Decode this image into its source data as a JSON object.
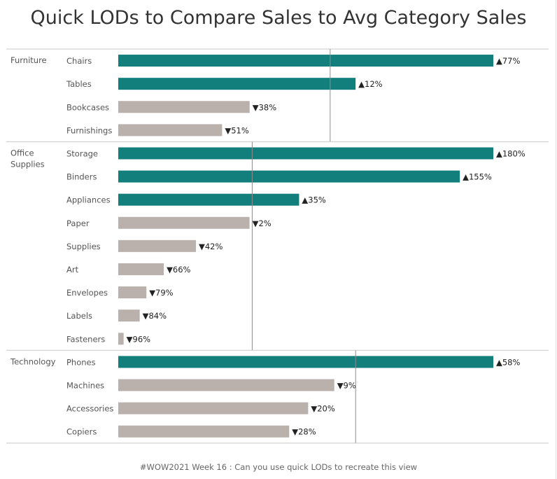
{
  "title": "Quick LODs to Compare Sales to Avg Category Sales",
  "footer": "#WOW2021 Week 16 : Can you use quick LODs to recreate this view",
  "colors": {
    "above": "#137f7d",
    "below": "#bab0ac",
    "separator": "#c8c8c8",
    "ref_line": "#8c8c8c",
    "category_text": "#555555",
    "sub_text": "#555555",
    "label_text": "#222222"
  },
  "chart_data": {
    "type": "bar",
    "orientation": "horizontal",
    "title": "Quick LODs to Compare Sales to Avg Category Sales",
    "xlabel": "",
    "ylabel": "",
    "grid": false,
    "groups": [
      {
        "category": "Furniture",
        "category_lines": [
          "Furniture"
        ],
        "avg_ratio": 1.0,
        "items": [
          {
            "name": "Chairs",
            "ratio": 1.77,
            "label": "▲77%",
            "above": true
          },
          {
            "name": "Tables",
            "ratio": 1.12,
            "label": "▲12%",
            "above": true
          },
          {
            "name": "Bookcases",
            "ratio": 0.62,
            "label": "▼38%",
            "above": false
          },
          {
            "name": "Furnishings",
            "ratio": 0.49,
            "label": "▼51%",
            "above": false
          }
        ]
      },
      {
        "category": "Office Supplies",
        "category_lines": [
          "Office",
          "Supplies"
        ],
        "avg_ratio": 1.0,
        "items": [
          {
            "name": "Storage",
            "ratio": 2.8,
            "label": "▲180%",
            "above": true
          },
          {
            "name": "Binders",
            "ratio": 2.55,
            "label": "▲155%",
            "above": true
          },
          {
            "name": "Appliances",
            "ratio": 1.35,
            "label": "▲35%",
            "above": true
          },
          {
            "name": "Paper",
            "ratio": 0.98,
            "label": "▼2%",
            "above": false
          },
          {
            "name": "Supplies",
            "ratio": 0.58,
            "label": "▼42%",
            "above": false
          },
          {
            "name": "Art",
            "ratio": 0.34,
            "label": "▼66%",
            "above": false
          },
          {
            "name": "Envelopes",
            "ratio": 0.21,
            "label": "▼79%",
            "above": false
          },
          {
            "name": "Labels",
            "ratio": 0.16,
            "label": "▼84%",
            "above": false
          },
          {
            "name": "Fasteners",
            "ratio": 0.04,
            "label": "▼96%",
            "above": false
          }
        ]
      },
      {
        "category": "Technology",
        "category_lines": [
          "Technology"
        ],
        "avg_ratio": 1.0,
        "items": [
          {
            "name": "Phones",
            "ratio": 1.58,
            "label": "▲58%",
            "above": true
          },
          {
            "name": "Machines",
            "ratio": 0.91,
            "label": "▼9%",
            "above": false
          },
          {
            "name": "Accessories",
            "ratio": 0.8,
            "label": "▼20%",
            "above": false
          },
          {
            "name": "Copiers",
            "ratio": 0.72,
            "label": "▼28%",
            "above": false
          }
        ]
      }
    ]
  }
}
